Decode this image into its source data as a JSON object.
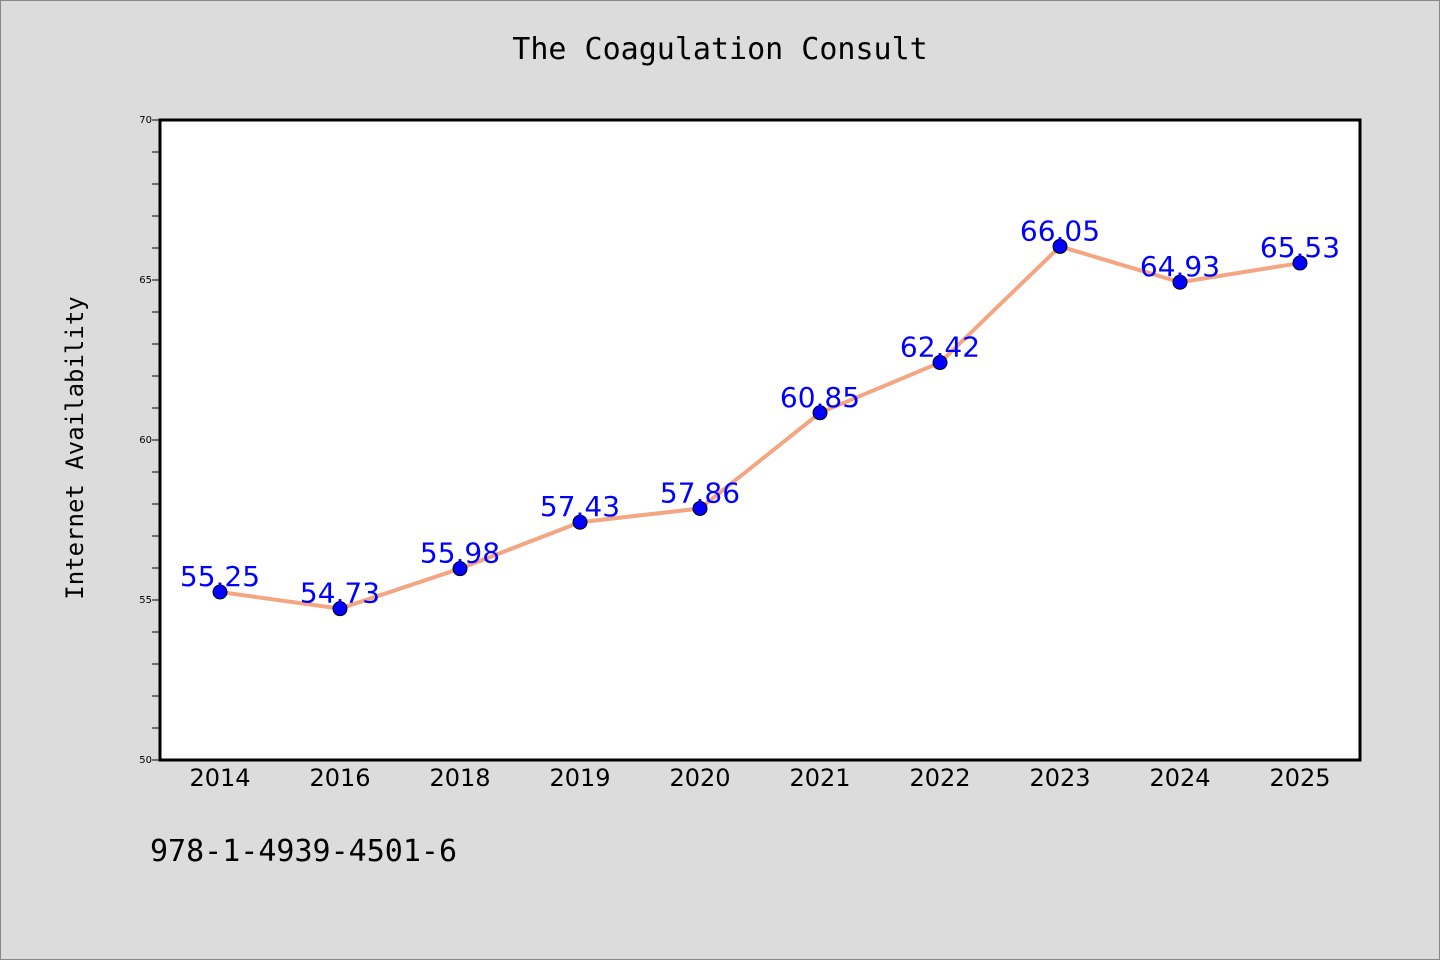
{
  "header": {
    "title": "The Coagulation Consult"
  },
  "footer": {
    "code": "978-1-4939-4501-6"
  },
  "colors": {
    "line": "#f4a582",
    "marker": "#0000ff",
    "data_label": "#0000ff",
    "plot_bg": "#ffffff",
    "page_bg": "#dcdcdc"
  },
  "chart_data": {
    "type": "line",
    "title": "The Coagulation Consult",
    "xlabel": "",
    "ylabel": "Internet Availability",
    "categories": [
      "2014",
      "2016",
      "2018",
      "2019",
      "2020",
      "2021",
      "2022",
      "2023",
      "2024",
      "2025"
    ],
    "series": [
      {
        "values": [
          55.25,
          54.73,
          55.98,
          57.43,
          57.86,
          60.85,
          62.42,
          66.05,
          64.93,
          65.53
        ]
      }
    ],
    "data_labels": [
      "55.25",
      "54.73",
      "55.98",
      "57.43",
      "57.86",
      "60.85",
      "62.42",
      "66.05",
      "64.93",
      "65.53"
    ],
    "ylim": [
      50,
      70
    ],
    "yticks": [
      50,
      55,
      60,
      65,
      70
    ],
    "ytick_labels": [
      "50",
      "55",
      "60",
      "65",
      "70"
    ],
    "grid": false,
    "legend": "none"
  }
}
